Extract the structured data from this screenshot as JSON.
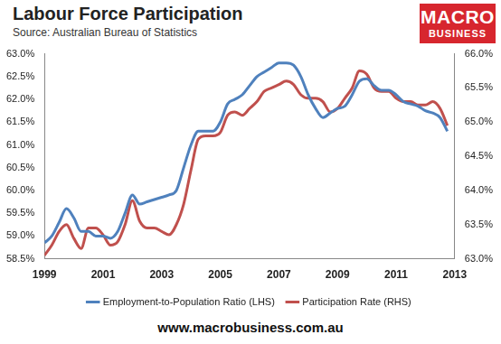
{
  "chart_data": {
    "type": "line",
    "title": "Labour Force Participation",
    "subtitle": "Source: Australian Bureau of Statistics",
    "logo": [
      "MACRO",
      "BUSINESS"
    ],
    "footer": "www.macrobusiness.com.au",
    "x": [
      1999,
      1999.25,
      1999.5,
      1999.75,
      2000,
      2000.25,
      2000.5,
      2000.75,
      2001,
      2001.25,
      2001.5,
      2001.75,
      2002,
      2002.25,
      2002.5,
      2002.75,
      2003,
      2003.25,
      2003.5,
      2003.75,
      2004,
      2004.25,
      2004.5,
      2004.75,
      2005,
      2005.25,
      2005.5,
      2005.75,
      2006,
      2006.25,
      2006.5,
      2006.75,
      2007,
      2007.25,
      2007.5,
      2007.75,
      2008,
      2008.25,
      2008.5,
      2008.75,
      2009,
      2009.25,
      2009.5,
      2009.75,
      2010,
      2010.25,
      2010.5,
      2010.75,
      2011,
      2011.25,
      2011.5,
      2011.75,
      2012,
      2012.25,
      2012.5,
      2012.75
    ],
    "series": [
      {
        "name": "Employment-to-Population Ratio (LHS)",
        "color": "#4f81bd",
        "axis": "y",
        "values": [
          58.85,
          59.0,
          59.3,
          59.6,
          59.4,
          59.1,
          59.1,
          59.0,
          59.0,
          58.95,
          59.1,
          59.5,
          59.9,
          59.7,
          59.75,
          59.8,
          59.85,
          59.9,
          60.0,
          60.5,
          61.0,
          61.3,
          61.3,
          61.3,
          61.5,
          61.9,
          62.0,
          62.1,
          62.3,
          62.5,
          62.6,
          62.7,
          62.8,
          62.8,
          62.75,
          62.5,
          62.1,
          61.8,
          61.6,
          61.7,
          61.8,
          61.85,
          62.1,
          62.4,
          62.45,
          62.3,
          62.2,
          62.2,
          62.1,
          61.95,
          61.9,
          61.85,
          61.75,
          61.7,
          61.6,
          61.3
        ]
      },
      {
        "name": "Participation Rate (RHS)",
        "color": "#c0504d",
        "axis": "y2",
        "values": [
          63.05,
          63.2,
          63.4,
          63.5,
          63.3,
          63.15,
          63.45,
          63.45,
          63.35,
          63.2,
          63.25,
          63.5,
          63.85,
          63.55,
          63.45,
          63.45,
          63.4,
          63.35,
          63.5,
          63.8,
          64.3,
          64.75,
          64.8,
          64.8,
          64.85,
          65.1,
          65.15,
          65.1,
          65.2,
          65.3,
          65.45,
          65.5,
          65.55,
          65.6,
          65.55,
          65.4,
          65.35,
          65.35,
          65.3,
          65.15,
          65.2,
          65.35,
          65.5,
          65.75,
          65.7,
          65.5,
          65.45,
          65.45,
          65.35,
          65.3,
          65.3,
          65.25,
          65.25,
          65.3,
          65.2,
          64.95
        ]
      }
    ],
    "xlim": [
      1999,
      2013
    ],
    "xticks": [
      1999,
      2001,
      2003,
      2005,
      2007,
      2009,
      2011,
      2013
    ],
    "ylim": [
      58.5,
      63
    ],
    "yticks": [
      {
        "value": 58.5,
        "label": "58.5%"
      },
      {
        "value": 59,
        "label": "59.0%"
      },
      {
        "value": 59.5,
        "label": "59.5%"
      },
      {
        "value": 60,
        "label": "60.0%"
      },
      {
        "value": 60.5,
        "label": "60.5%"
      },
      {
        "value": 61,
        "label": "61.0%"
      },
      {
        "value": 61.5,
        "label": "61.5%"
      },
      {
        "value": 62,
        "label": "62.0%"
      },
      {
        "value": 62.5,
        "label": "62.5%"
      },
      {
        "value": 63,
        "label": "63.0%"
      }
    ],
    "y2lim": [
      63,
      66
    ],
    "y2ticks": [
      {
        "value": 63,
        "label": "63.0%"
      },
      {
        "value": 63.5,
        "label": "63.5%"
      },
      {
        "value": 64,
        "label": "64.0%"
      },
      {
        "value": 64.5,
        "label": "64.5%"
      },
      {
        "value": 65,
        "label": "65.0%"
      },
      {
        "value": 65.5,
        "label": "65.5%"
      },
      {
        "value": 66,
        "label": "66.0%"
      }
    ],
    "grid": false,
    "legend": "bottom"
  }
}
